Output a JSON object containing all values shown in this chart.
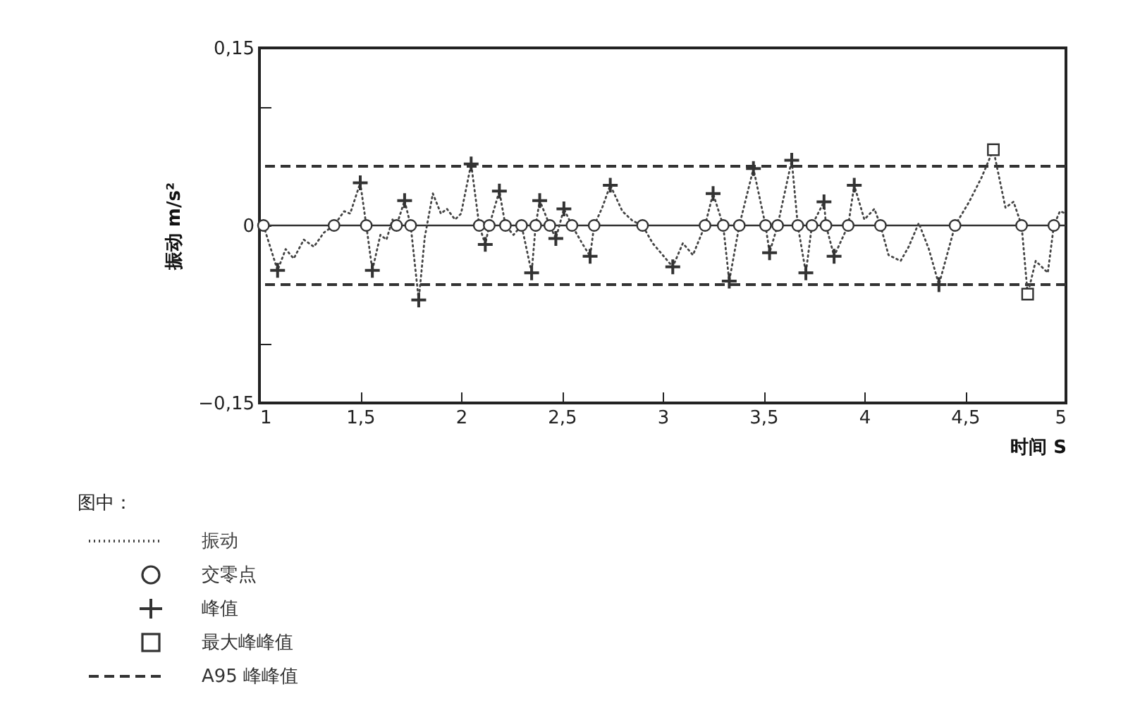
{
  "chart_data": {
    "type": "line",
    "xlabel": "时间 S",
    "ylabel": "振动 m/s²",
    "legend_title": "图中：",
    "legend": "bottom left",
    "grid": false,
    "xlim": [
      1,
      5
    ],
    "xticks": [
      1,
      {
        "value": 1.5,
        "label": "1,5"
      },
      2,
      {
        "value": 2.5,
        "label": "2,5"
      },
      3,
      {
        "value": 3.5,
        "label": "3,5"
      },
      4,
      {
        "value": 4.5,
        "label": "4,5"
      },
      5
    ],
    "ylim": [
      -0.15,
      0.15
    ],
    "yticks": [
      {
        "value": -0.15,
        "label": "−0,15"
      },
      {
        "value": -0.1,
        "label": null
      },
      0,
      {
        "value": 0.1,
        "label": null
      },
      {
        "value": 0.15,
        "label": "0,15"
      }
    ],
    "series": [
      {
        "name": "振动",
        "type": "line",
        "color": "#444444",
        "line_style": "dotted",
        "marker": "none",
        "x": [
          1.0,
          1.02,
          1.09,
          1.13,
          1.17,
          1.22,
          1.27,
          1.32,
          1.37,
          1.42,
          1.45,
          1.5,
          1.53,
          1.56,
          1.6,
          1.63,
          1.66,
          1.68,
          1.72,
          1.75,
          1.79,
          1.82,
          1.86,
          1.9,
          1.93,
          1.97,
          2.0,
          2.05,
          2.09,
          2.12,
          2.14,
          2.19,
          2.22,
          2.26,
          2.3,
          2.35,
          2.37,
          2.39,
          2.44,
          2.47,
          2.51,
          2.55,
          2.6,
          2.64,
          2.66,
          2.7,
          2.74,
          2.8,
          2.85,
          2.9,
          2.95,
          3.0,
          3.05,
          3.1,
          3.15,
          3.21,
          3.25,
          3.3,
          3.33,
          3.38,
          3.45,
          3.51,
          3.53,
          3.57,
          3.64,
          3.67,
          3.71,
          3.74,
          3.8,
          3.81,
          3.85,
          3.92,
          3.95,
          4.0,
          4.05,
          4.08,
          4.12,
          4.18,
          4.22,
          4.27,
          4.32,
          4.37,
          4.45,
          4.52,
          4.58,
          4.64,
          4.7,
          4.74,
          4.78,
          4.81,
          4.85,
          4.88,
          4.91,
          4.94,
          4.97,
          5.0
        ],
        "values": [
          0.002,
          0,
          -0.038,
          -0.02,
          -0.028,
          -0.012,
          -0.018,
          -0.006,
          0,
          0.012,
          0.01,
          0.036,
          0,
          -0.038,
          -0.008,
          -0.012,
          0.005,
          0,
          0.021,
          0,
          -0.063,
          -0.01,
          0.027,
          0.01,
          0.014,
          0.005,
          0.01,
          0.052,
          0,
          -0.016,
          0,
          0.029,
          0,
          -0.008,
          0,
          -0.04,
          0,
          0.021,
          0,
          -0.011,
          0.014,
          0,
          -0.015,
          -0.026,
          0,
          0.015,
          0.034,
          0.012,
          0.004,
          0,
          -0.015,
          -0.025,
          -0.035,
          -0.015,
          -0.025,
          0,
          0.027,
          0,
          -0.047,
          0,
          0.048,
          0,
          -0.023,
          0,
          0.055,
          0,
          -0.04,
          0,
          0.02,
          0,
          -0.026,
          0,
          0.034,
          0.005,
          0.014,
          0,
          -0.025,
          -0.03,
          -0.018,
          0.002,
          -0.02,
          -0.05,
          0,
          0.02,
          0.04,
          0.064,
          0.015,
          0.02,
          0,
          -0.058,
          -0.03,
          -0.035,
          -0.04,
          0,
          0.012,
          0.01
        ]
      },
      {
        "name": "交零点",
        "type": "scatter",
        "color": "#333333",
        "marker": "circle",
        "x": [
          1.02,
          1.37,
          1.53,
          1.68,
          1.75,
          2.09,
          2.14,
          2.22,
          2.3,
          2.37,
          2.44,
          2.55,
          2.66,
          2.9,
          3.21,
          3.3,
          3.38,
          3.51,
          3.57,
          3.67,
          3.74,
          3.81,
          3.92,
          4.08,
          4.45,
          4.78,
          4.94
        ],
        "values": [
          0,
          0,
          0,
          0,
          0,
          0,
          0,
          0,
          0,
          0,
          0,
          0,
          0,
          0,
          0,
          0,
          0,
          0,
          0,
          0,
          0,
          0,
          0,
          0,
          0,
          0,
          0
        ]
      },
      {
        "name": "峰值",
        "type": "scatter",
        "color": "#333333",
        "marker": "cross",
        "x": [
          1.09,
          1.5,
          1.56,
          1.72,
          1.79,
          2.05,
          2.12,
          2.19,
          2.35,
          2.39,
          2.47,
          2.51,
          2.64,
          2.74,
          3.05,
          3.25,
          3.33,
          3.45,
          3.53,
          3.64,
          3.71,
          3.8,
          3.85,
          3.95,
          4.37
        ],
        "values": [
          -0.038,
          0.036,
          -0.038,
          0.021,
          -0.063,
          0.052,
          -0.016,
          0.029,
          -0.04,
          0.021,
          -0.011,
          0.014,
          -0.026,
          0.034,
          -0.035,
          0.027,
          -0.047,
          0.048,
          -0.023,
          0.055,
          -0.04,
          0.02,
          -0.026,
          0.034,
          -0.05
        ]
      },
      {
        "name": "最大峰峰值",
        "type": "scatter",
        "color": "#333333",
        "marker": "square",
        "x": [
          4.64,
          4.81
        ],
        "values": [
          0.064,
          -0.058
        ]
      }
    ],
    "ref_lines": [
      {
        "axis": "y",
        "value": 0,
        "color": "#333333",
        "line_style": "solid"
      },
      {
        "axis": "y",
        "value": 0.05,
        "color": "#333333",
        "line_style": "dashed",
        "label": "A95 峰峰值"
      },
      {
        "axis": "y",
        "value": -0.05,
        "color": "#333333",
        "line_style": "dashed"
      }
    ]
  }
}
